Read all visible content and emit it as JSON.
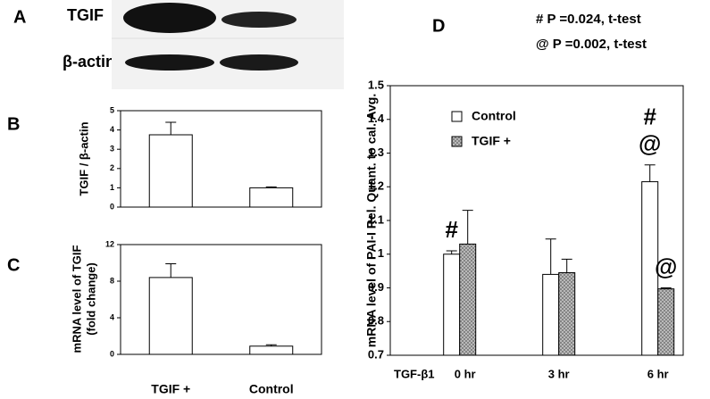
{
  "blot": {
    "panel": "A",
    "rows": [
      "TGIF",
      "β-actin"
    ]
  },
  "chart_data": [
    {
      "type": "bar",
      "panel": "B",
      "ylabel": [
        "TGIF / β-actin"
      ],
      "categories": [
        null,
        null
      ],
      "values": [
        3.75,
        1.0
      ],
      "errors": [
        0.65,
        0.05
      ],
      "color": "#ffffff",
      "ylim": [
        0,
        5
      ],
      "yticks": [
        0,
        1,
        2,
        3,
        4,
        5
      ]
    },
    {
      "type": "bar",
      "panel": "C",
      "ylabel": [
        "mRNA level of TGIF",
        "(fold change)"
      ],
      "categories": [
        "TGIF +",
        "Control"
      ],
      "values": [
        8.4,
        0.9
      ],
      "errors": [
        1.5,
        0.15
      ],
      "color": "#ffffff",
      "ylim": [
        0,
        12
      ],
      "yticks": [
        0,
        4,
        8,
        12
      ]
    },
    {
      "type": "grouped-bar",
      "panel": "D",
      "ylabel": [
        "mRNA level of PAI-I  Rel. Quant. to cal. Avg."
      ],
      "xlabel": "TGF-β1",
      "categories": [
        "0 hr",
        "3 hr",
        "6 hr"
      ],
      "series": [
        {
          "name": "Control",
          "color": "#ffffff",
          "values": [
            1.0,
            0.94,
            1.215
          ],
          "errors": [
            0.01,
            0.105,
            0.05
          ]
        },
        {
          "name": "TGIF +",
          "color": "#c8c8c8",
          "hatch": true,
          "values": [
            1.03,
            0.945,
            0.897
          ],
          "errors": [
            0.1,
            0.04,
            0.003
          ]
        }
      ],
      "annotations": [
        "#",
        "@",
        "#",
        "@"
      ],
      "notes": [
        "# P =0.024, t-test",
        "@ P =0.002, t-test"
      ],
      "ylim": [
        0.7,
        1.5
      ],
      "yticks": [
        0.7,
        0.8,
        0.9,
        1,
        1.1,
        1.2,
        1.3,
        1.4,
        1.5
      ],
      "legend": "upper left"
    }
  ]
}
